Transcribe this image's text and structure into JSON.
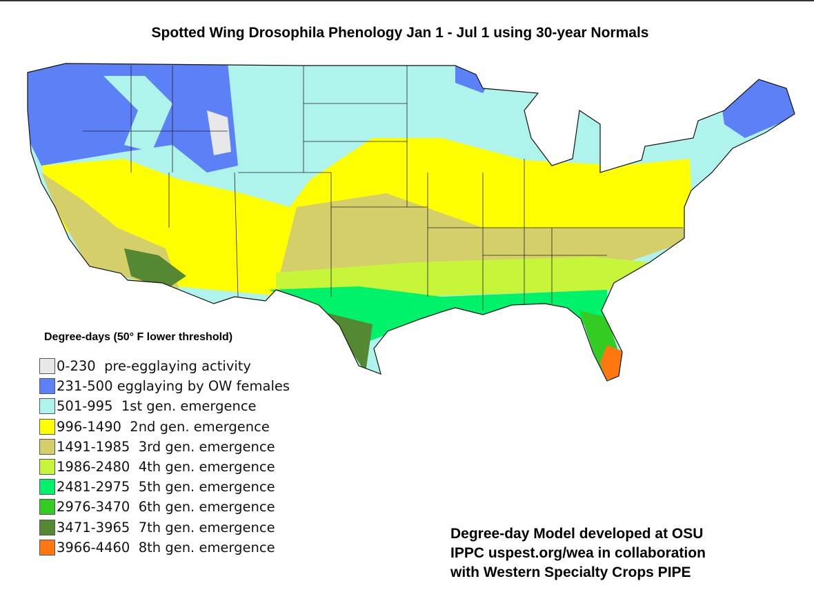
{
  "title": "Spotted Wing Drosophila Phenology Jan 1 - Jul 1 using 30-year Normals",
  "legend": {
    "title": "Degree-days (50° F lower threshold)",
    "items": [
      {
        "range": "0-230",
        "label": "pre-egglaying activity",
        "color": "#e8e8e8"
      },
      {
        "range": "231-500",
        "label": "egglaying by OW females",
        "color": "#5c80f5"
      },
      {
        "range": "501-995",
        "label": "1st gen. emergence",
        "color": "#aef3ec"
      },
      {
        "range": "996-1490",
        "label": "2nd gen. emergence",
        "color": "#ffff00"
      },
      {
        "range": "1491-1985",
        "label": "3rd gen. emergence",
        "color": "#d4cf6a"
      },
      {
        "range": "1986-2480",
        "label": "4th gen. emergence",
        "color": "#c6f53a"
      },
      {
        "range": "2481-2975",
        "label": "5th gen. emergence",
        "color": "#00f26a"
      },
      {
        "range": "2976-3470",
        "label": "6th gen. emergence",
        "color": "#33cc22"
      },
      {
        "range": "3471-3965",
        "label": "7th gen. emergence",
        "color": "#558833"
      },
      {
        "range": "3966-4460",
        "label": "8th gen. emergence",
        "color": "#ff7711"
      }
    ]
  },
  "credit": [
    "Degree-day Model developed at OSU",
    "IPPC uspest.org/wea in collaboration",
    "with Western Specialty Crops PIPE"
  ]
}
